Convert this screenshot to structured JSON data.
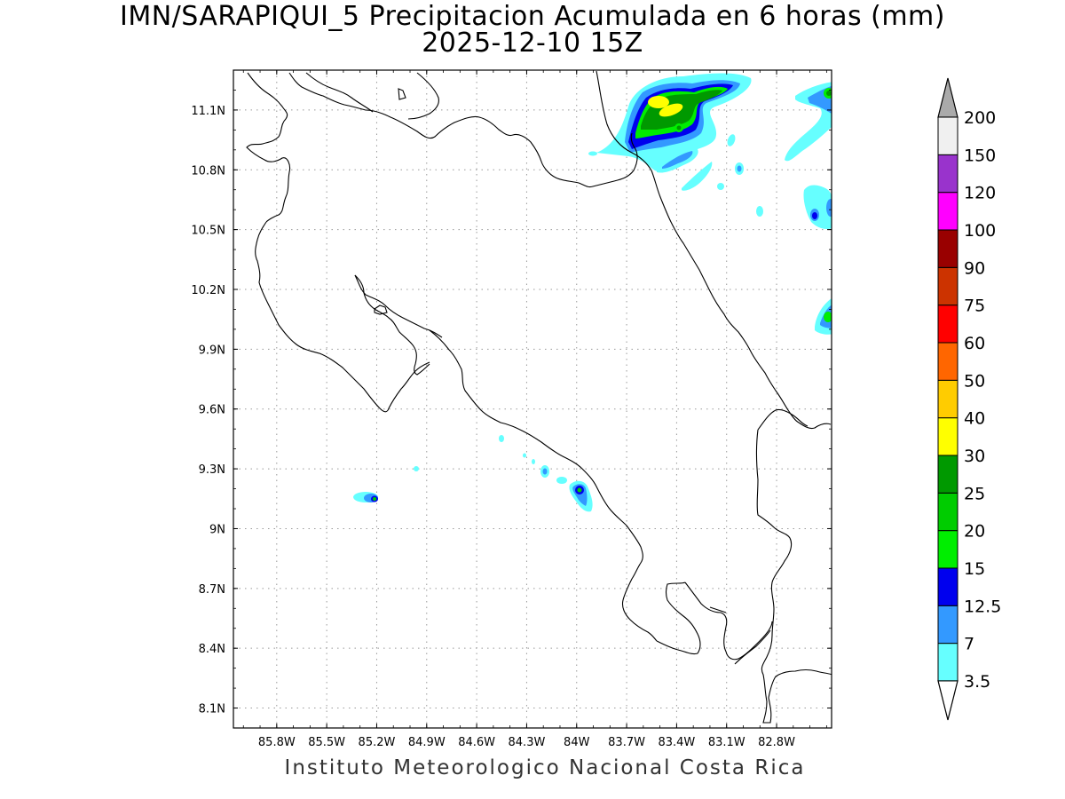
{
  "title": {
    "line1": "IMN/SARAPIQUI_5 Precipitacion Acumulada en 6 horas (mm)",
    "line2": "2025-12-10 15Z"
  },
  "footer": "Instituto Meteorologico Nacional Costa Rica",
  "map": {
    "lon_range": [
      -86.06,
      -82.47
    ],
    "lat_range": [
      8.0,
      11.3
    ],
    "lon_ticks": [
      {
        "value": -85.8,
        "label": "85.8W"
      },
      {
        "value": -85.5,
        "label": "85.5W"
      },
      {
        "value": -85.2,
        "label": "85.2W"
      },
      {
        "value": -84.9,
        "label": "84.9W"
      },
      {
        "value": -84.6,
        "label": "84.6W"
      },
      {
        "value": -84.3,
        "label": "84.3W"
      },
      {
        "value": -84.0,
        "label": "84W"
      },
      {
        "value": -83.7,
        "label": "83.7W"
      },
      {
        "value": -83.4,
        "label": "83.4W"
      },
      {
        "value": -83.1,
        "label": "83.1W"
      },
      {
        "value": -82.8,
        "label": "82.8W"
      }
    ],
    "lat_ticks": [
      {
        "value": 11.1,
        "label": "11.1N"
      },
      {
        "value": 10.8,
        "label": "10.8N"
      },
      {
        "value": 10.5,
        "label": "10.5N"
      },
      {
        "value": 10.2,
        "label": "10.2N"
      },
      {
        "value": 9.9,
        "label": "9.9N"
      },
      {
        "value": 9.6,
        "label": "9.6N"
      },
      {
        "value": 9.3,
        "label": "9.3N"
      },
      {
        "value": 9.0,
        "label": "9N"
      },
      {
        "value": 8.7,
        "label": "8.7N"
      },
      {
        "value": 8.4,
        "label": "8.4N"
      },
      {
        "value": 8.1,
        "label": "8.1N"
      }
    ],
    "grid": "dotted"
  },
  "colorbar": {
    "levels": [
      "3.5",
      "7",
      "12.5",
      "15",
      "20",
      "25",
      "30",
      "40",
      "50",
      "60",
      "75",
      "90",
      "100",
      "120",
      "150",
      "200"
    ],
    "colors": [
      "#66ffff",
      "#3399ff",
      "#0000ee",
      "#00ee00",
      "#00cc00",
      "#009900",
      "#ffff00",
      "#ffcc00",
      "#ff6600",
      "#ff0000",
      "#cc3300",
      "#990000",
      "#ff00ff",
      "#9933cc",
      "#f0f0f0"
    ],
    "top_arrow_color": "#aaaaaa",
    "bottom_arrow_color": "#ffffff"
  }
}
